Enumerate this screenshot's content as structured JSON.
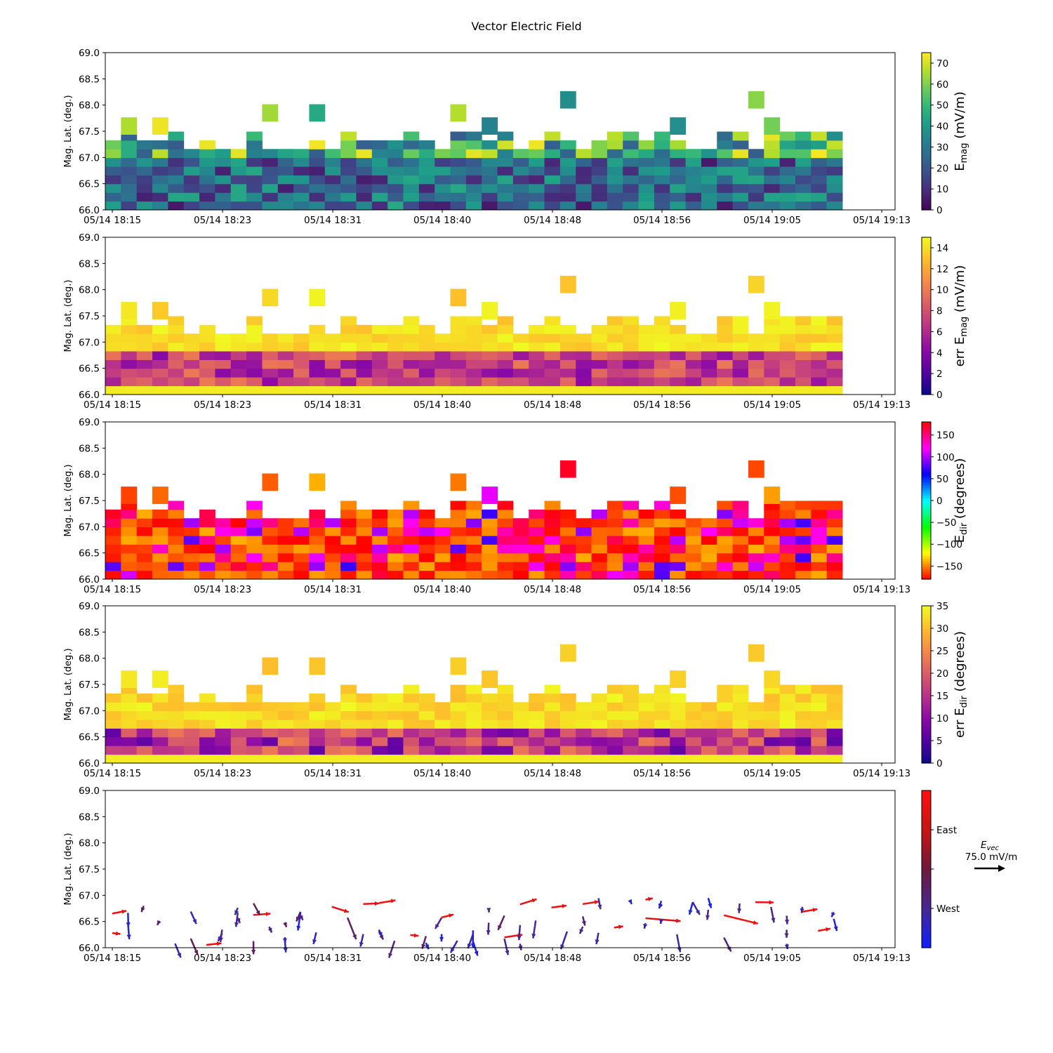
{
  "title": "Vector Electric Field",
  "chart_data": {
    "type": "heatmap",
    "x_range": [
      "2016-05-14T18:13",
      "2016-05-14T19:14"
    ],
    "x_ticks": [
      "05/14 18:15",
      "05/14 18:23",
      "05/14 18:31",
      "05/14 18:40",
      "05/14 18:48",
      "05/14 18:56",
      "05/14 19:05",
      "05/14 19:13"
    ],
    "ylabel": "Mag. Lat. (deg.)",
    "ylim": [
      66.0,
      69.0
    ],
    "y_ticks": [
      "66.0",
      "66.5",
      "67.0",
      "67.5",
      "68.0",
      "68.5",
      "69.0"
    ],
    "panels": [
      {
        "id": "emag",
        "colorbar_label": "E",
        "colorbar_label_sub": "mag",
        "colorbar_label_suffix": " (mV/m)",
        "colormap": "viridis",
        "range": [
          0,
          75
        ],
        "cb_ticks": [
          "0",
          "10",
          "20",
          "30",
          "40",
          "50",
          "60",
          "70"
        ]
      },
      {
        "id": "err_emag",
        "colorbar_label": "err E",
        "colorbar_label_sub": "mag",
        "colorbar_label_suffix": " (mV/m)",
        "colormap": "plasma",
        "range": [
          0,
          15
        ],
        "cb_ticks": [
          "0",
          "2",
          "4",
          "6",
          "8",
          "10",
          "12",
          "14"
        ]
      },
      {
        "id": "edir",
        "colorbar_label": "E",
        "colorbar_label_sub": "dir",
        "colorbar_label_suffix": " (degrees)",
        "colormap": "hsv",
        "range": [
          -180,
          180
        ],
        "cb_ticks": [
          "−150",
          "−100",
          "−50",
          "0",
          "50",
          "100",
          "150"
        ]
      },
      {
        "id": "err_edir",
        "colorbar_label": "err E",
        "colorbar_label_sub": "dir",
        "colorbar_label_suffix": " (degrees)",
        "colormap": "plasma",
        "range": [
          0,
          35
        ],
        "cb_ticks": [
          "0",
          "5",
          "10",
          "15",
          "20",
          "25",
          "30",
          "35"
        ]
      },
      {
        "id": "vectors",
        "type": "quiver",
        "colormap": "blue-red",
        "cb_labels": [
          "East",
          "West"
        ],
        "key_label": "E",
        "key_label_sub": "vec",
        "key_value": "75.0 mV/m"
      }
    ]
  },
  "colors": {
    "axes": "#000000",
    "background": "#ffffff",
    "west": "#1a1aff",
    "east": "#ff1a1a"
  }
}
